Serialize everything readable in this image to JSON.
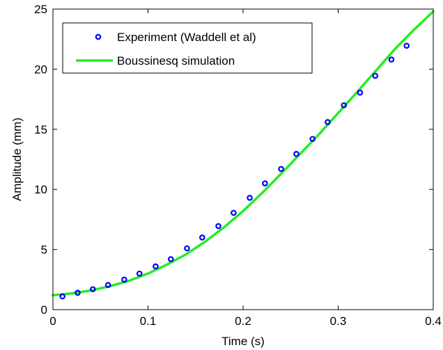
{
  "chart_data": {
    "type": "line",
    "xlabel": "Time (s)",
    "ylabel": "Amplitude (mm)",
    "xlim": [
      0,
      0.4
    ],
    "ylim": [
      0,
      25
    ],
    "x_ticks": [
      0,
      0.1,
      0.2,
      0.3,
      0.4
    ],
    "x_tick_labels": [
      "0",
      "0.1",
      "0.2",
      "0.3",
      "0.4"
    ],
    "y_ticks": [
      0,
      5,
      10,
      15,
      20,
      25
    ],
    "y_tick_labels": [
      "0",
      "5",
      "10",
      "15",
      "20",
      "25"
    ],
    "grid": false,
    "legend_position": "top-left",
    "series": [
      {
        "name": "Experiment (Waddell et al)",
        "style": "markers",
        "marker": "circle",
        "color": "#0000ff",
        "x": [
          0.01,
          0.026,
          0.042,
          0.058,
          0.075,
          0.091,
          0.108,
          0.124,
          0.141,
          0.157,
          0.174,
          0.19,
          0.207,
          0.223,
          0.24,
          0.256,
          0.273,
          0.289,
          0.306,
          0.323,
          0.339,
          0.356,
          0.372
        ],
        "y": [
          1.1,
          1.4,
          1.7,
          2.05,
          2.5,
          3.0,
          3.6,
          4.2,
          5.1,
          6.0,
          6.95,
          8.05,
          9.3,
          10.5,
          11.7,
          12.95,
          14.2,
          15.6,
          17.0,
          18.05,
          19.45,
          20.8,
          21.95
        ]
      },
      {
        "name": "Boussinesq simulation",
        "style": "line",
        "color": "#22ee22",
        "x": [
          0,
          0.02,
          0.04,
          0.06,
          0.08,
          0.1,
          0.12,
          0.14,
          0.16,
          0.18,
          0.2,
          0.22,
          0.24,
          0.26,
          0.28,
          0.3,
          0.32,
          0.34,
          0.36,
          0.38,
          0.4
        ],
        "y": [
          1.2,
          1.35,
          1.6,
          1.95,
          2.4,
          3.0,
          3.75,
          4.6,
          5.65,
          6.85,
          8.2,
          9.7,
          11.3,
          12.95,
          14.6,
          16.35,
          18.1,
          19.9,
          21.7,
          23.3,
          24.8
        ]
      }
    ]
  }
}
